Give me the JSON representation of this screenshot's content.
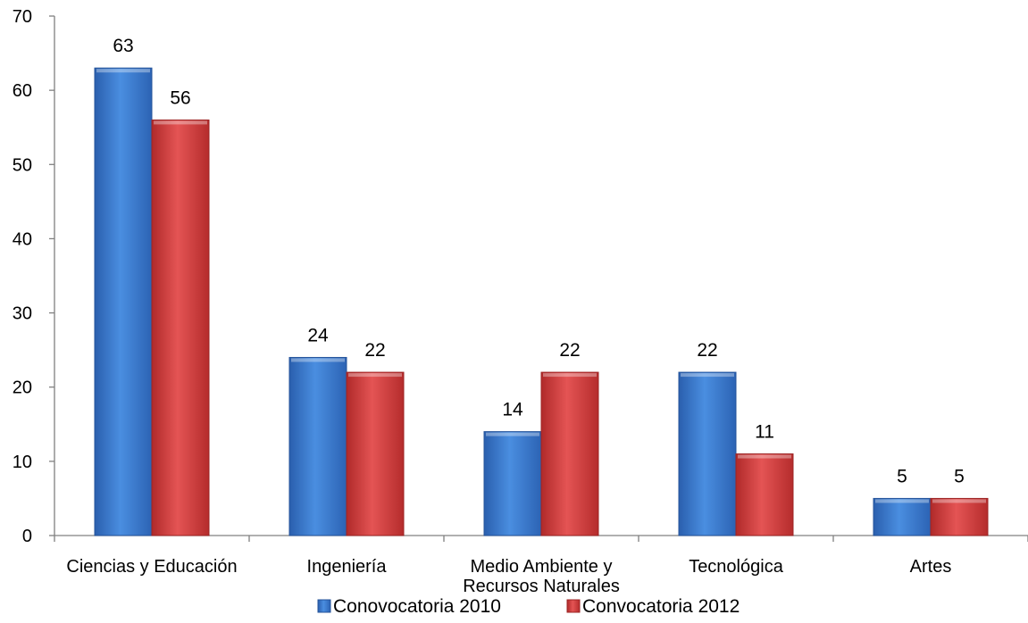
{
  "chart_data": {
    "type": "bar",
    "title": "",
    "xlabel": "",
    "ylabel": "",
    "ylim": [
      0,
      70
    ],
    "yticks": [
      0,
      10,
      20,
      30,
      40,
      50,
      60,
      70
    ],
    "grid": false,
    "legend": "bottom",
    "categories": [
      [
        "Ciencias y Educación"
      ],
      [
        "Ingeniería"
      ],
      [
        "Medio Ambiente y",
        "Recursos Naturales"
      ],
      [
        "Tecnológica"
      ],
      [
        "Artes"
      ]
    ],
    "series": [
      {
        "name": "Conovocatoria 2010",
        "color": "#3a75c8",
        "values": [
          63,
          24,
          14,
          22,
          5
        ]
      },
      {
        "name": "Convocatoria 2012",
        "color": "#d23b3b",
        "values": [
          56,
          22,
          22,
          11,
          5
        ]
      }
    ]
  }
}
